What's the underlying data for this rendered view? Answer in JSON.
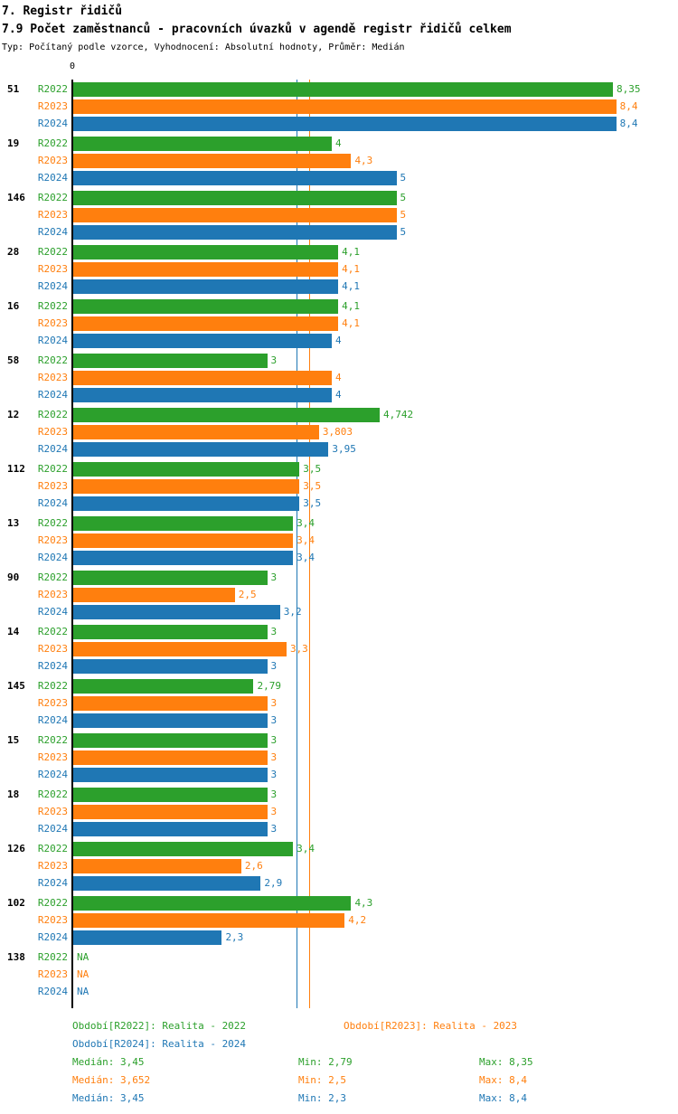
{
  "chart_data": {
    "type": "bar",
    "orientation": "horizontal",
    "title": "7. Registr řidičů",
    "subtitle": "7.9 Počet zaměstnanců - pracovních úvazků v agendě registr řidičů celkem",
    "meta": "Typ: Počítaný podle vzorce, Vyhodnocení: Absolutní hodnoty, Průměr: Medián",
    "x_tick_zero": "0",
    "xlim": [
      0,
      8.4
    ],
    "grid": false,
    "legend_position": "bottom",
    "series": [
      {
        "name": "R2022",
        "color": "#2ca02c",
        "legend": "Období[R2022]: Realita - 2022",
        "median_value": 3.45,
        "median_label": "Medián: 3,45",
        "min_label": "Min: 2,79",
        "max_label": "Max: 8,35"
      },
      {
        "name": "R2023",
        "color": "#ff7f0e",
        "legend": "Období[R2023]: Realita - 2023",
        "median_value": 3.652,
        "median_label": "Medián: 3,652",
        "min_label": "Min: 2,5",
        "max_label": "Max: 8,4"
      },
      {
        "name": "R2024",
        "color": "#1f77b4",
        "legend": "Období[R2024]: Realita - 2024",
        "median_value": 3.45,
        "median_label": "Medián: 3,45",
        "min_label": "Min: 2,3",
        "max_label": "Max: 8,4"
      }
    ],
    "groups": [
      {
        "label": "51",
        "values": [
          8.35,
          8.4,
          8.4
        ],
        "display": [
          "8,35",
          "8,4",
          "8,4"
        ]
      },
      {
        "label": "19",
        "values": [
          4,
          4.3,
          5
        ],
        "display": [
          "4",
          "4,3",
          "5"
        ]
      },
      {
        "label": "146",
        "values": [
          5,
          5,
          5
        ],
        "display": [
          "5",
          "5",
          "5"
        ]
      },
      {
        "label": "28",
        "values": [
          4.1,
          4.1,
          4.1
        ],
        "display": [
          "4,1",
          "4,1",
          "4,1"
        ]
      },
      {
        "label": "16",
        "values": [
          4.1,
          4.1,
          4
        ],
        "display": [
          "4,1",
          "4,1",
          "4"
        ]
      },
      {
        "label": "58",
        "values": [
          3,
          4,
          4
        ],
        "display": [
          "3",
          "4",
          "4"
        ]
      },
      {
        "label": "12",
        "values": [
          4.742,
          3.803,
          3.95
        ],
        "display": [
          "4,742",
          "3,803",
          "3,95"
        ]
      },
      {
        "label": "112",
        "values": [
          3.5,
          3.5,
          3.5
        ],
        "display": [
          "3,5",
          "3,5",
          "3,5"
        ]
      },
      {
        "label": "13",
        "values": [
          3.4,
          3.4,
          3.4
        ],
        "display": [
          "3,4",
          "3,4",
          "3,4"
        ]
      },
      {
        "label": "90",
        "values": [
          3,
          2.5,
          3.2
        ],
        "display": [
          "3",
          "2,5",
          "3,2"
        ]
      },
      {
        "label": "14",
        "values": [
          3,
          3.3,
          3
        ],
        "display": [
          "3",
          "3,3",
          "3"
        ]
      },
      {
        "label": "145",
        "values": [
          2.79,
          3,
          3
        ],
        "display": [
          "2,79",
          "3",
          "3"
        ]
      },
      {
        "label": "15",
        "values": [
          3,
          3,
          3
        ],
        "display": [
          "3",
          "3",
          "3"
        ]
      },
      {
        "label": "18",
        "values": [
          3,
          3,
          3
        ],
        "display": [
          "3",
          "3",
          "3"
        ]
      },
      {
        "label": "126",
        "values": [
          3.4,
          2.6,
          2.9
        ],
        "display": [
          "3,4",
          "2,6",
          "2,9"
        ]
      },
      {
        "label": "102",
        "values": [
          4.3,
          4.2,
          2.3
        ],
        "display": [
          "4,3",
          "4,2",
          "2,3"
        ]
      },
      {
        "label": "138",
        "values": [
          null,
          null,
          null
        ],
        "display": [
          "NA",
          "NA",
          "NA"
        ]
      }
    ]
  }
}
